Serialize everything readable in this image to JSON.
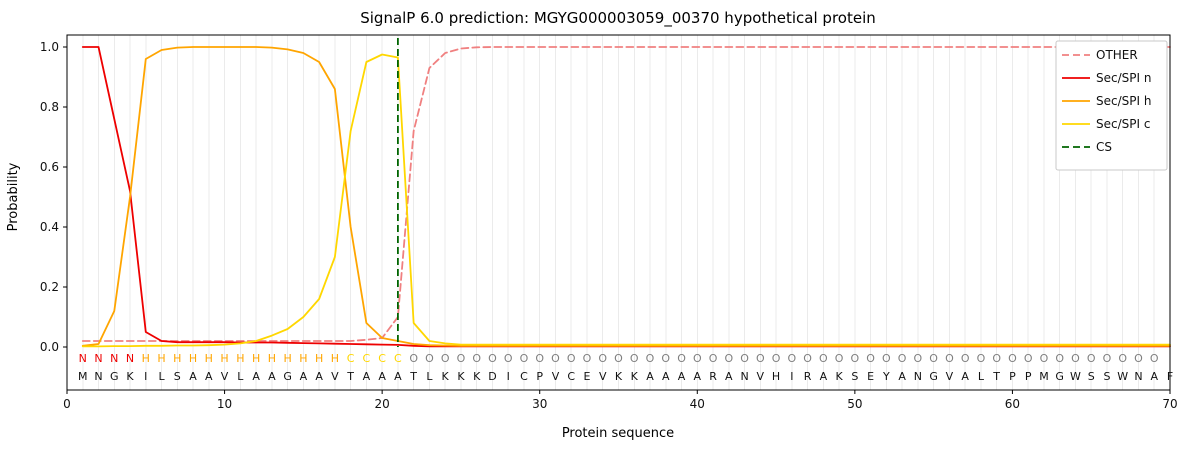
{
  "chart_data": {
    "type": "line",
    "title": "SignalP 6.0 prediction: MGYG000003059_00370 hypothetical protein",
    "xlabel": "Protein sequence",
    "ylabel": "Probability",
    "xlim": [
      0,
      70
    ],
    "ylim": [
      0,
      1.0
    ],
    "grid": "vertical-per-residue",
    "legend_position": "upper right",
    "xtick_values": [
      0,
      10,
      20,
      30,
      40,
      50,
      60,
      70
    ],
    "xtick_labels": [
      "0",
      "10",
      "20",
      "30",
      "40",
      "50",
      "60",
      "70"
    ],
    "ytick_values": [
      0,
      0.2,
      0.4,
      0.6,
      0.8,
      1.0
    ],
    "ytick_labels": [
      "0.0",
      "0.2",
      "0.4",
      "0.6",
      "0.8",
      "1.0"
    ],
    "series": [
      {
        "name": "OTHER",
        "color": "#f08080",
        "dash": true,
        "values": [
          0.02,
          0.02,
          0.02,
          0.02,
          0.02,
          0.02,
          0.02,
          0.02,
          0.02,
          0.02,
          0.02,
          0.02,
          0.02,
          0.02,
          0.02,
          0.02,
          0.02,
          0.02,
          0.024,
          0.03,
          0.1,
          0.72,
          0.93,
          0.98,
          0.995,
          0.999,
          1.0,
          1.0,
          1.0,
          1.0,
          1.0,
          1.0,
          1.0,
          1.0,
          1.0,
          1.0,
          1.0,
          1.0,
          1.0,
          1.0,
          1.0,
          1.0,
          1.0,
          1.0,
          1.0,
          1.0,
          1.0,
          1.0,
          1.0,
          1.0,
          1.0,
          1.0,
          1.0,
          1.0,
          1.0,
          1.0,
          1.0,
          1.0,
          1.0,
          1.0,
          1.0,
          1.0,
          1.0,
          1.0,
          1.0,
          1.0,
          1.0,
          1.0,
          1.0,
          1.0
        ]
      },
      {
        "name": "Sec/SPI n",
        "color": "#ee0000",
        "dash": false,
        "values": [
          1.0,
          1.0,
          0.76,
          0.52,
          0.05,
          0.02,
          0.016,
          0.016,
          0.016,
          0.016,
          0.015,
          0.015,
          0.015,
          0.014,
          0.013,
          0.012,
          0.011,
          0.01,
          0.009,
          0.008,
          0.007,
          0.004,
          0.002,
          0.002,
          0.002,
          0.002,
          0.002,
          0.002,
          0.002,
          0.002,
          0.002,
          0.002,
          0.002,
          0.002,
          0.002,
          0.002,
          0.002,
          0.002,
          0.002,
          0.002,
          0.002,
          0.002,
          0.002,
          0.002,
          0.002,
          0.002,
          0.002,
          0.002,
          0.002,
          0.002,
          0.002,
          0.002,
          0.002,
          0.002,
          0.002,
          0.002,
          0.002,
          0.002,
          0.002,
          0.002,
          0.002,
          0.002,
          0.002,
          0.002,
          0.002,
          0.002,
          0.002,
          0.002,
          0.002,
          0.002
        ]
      },
      {
        "name": "Sec/SPI h",
        "color": "#ffa500",
        "dash": false,
        "values": [
          0.004,
          0.01,
          0.12,
          0.5,
          0.96,
          0.99,
          0.998,
          1.0,
          1.0,
          1.0,
          1.0,
          1.0,
          0.998,
          0.992,
          0.98,
          0.95,
          0.86,
          0.4,
          0.08,
          0.03,
          0.02,
          0.01,
          0.006,
          0.005,
          0.004,
          0.004,
          0.004,
          0.004,
          0.004,
          0.004,
          0.004,
          0.004,
          0.004,
          0.004,
          0.004,
          0.004,
          0.004,
          0.004,
          0.004,
          0.004,
          0.004,
          0.004,
          0.004,
          0.004,
          0.004,
          0.004,
          0.004,
          0.004,
          0.004,
          0.004,
          0.004,
          0.004,
          0.004,
          0.004,
          0.004,
          0.004,
          0.004,
          0.004,
          0.004,
          0.004,
          0.004,
          0.004,
          0.004,
          0.004,
          0.004,
          0.004,
          0.004,
          0.004,
          0.004,
          0.004
        ]
      },
      {
        "name": "Sec/SPI c",
        "color": "#ffd700",
        "dash": false,
        "values": [
          0.002,
          0.002,
          0.003,
          0.003,
          0.004,
          0.004,
          0.005,
          0.005,
          0.006,
          0.008,
          0.012,
          0.02,
          0.038,
          0.06,
          0.1,
          0.16,
          0.3,
          0.72,
          0.95,
          0.975,
          0.965,
          0.08,
          0.02,
          0.012,
          0.008,
          0.008,
          0.008,
          0.008,
          0.008,
          0.008,
          0.008,
          0.008,
          0.008,
          0.008,
          0.008,
          0.008,
          0.008,
          0.008,
          0.008,
          0.008,
          0.008,
          0.008,
          0.008,
          0.008,
          0.008,
          0.008,
          0.008,
          0.008,
          0.008,
          0.008,
          0.008,
          0.008,
          0.008,
          0.008,
          0.008,
          0.008,
          0.008,
          0.008,
          0.008,
          0.008,
          0.008,
          0.008,
          0.008,
          0.008,
          0.008,
          0.008,
          0.008,
          0.008,
          0.008,
          0.008
        ]
      }
    ],
    "cs": {
      "name": "CS",
      "color": "#006400",
      "dash": true,
      "position": 21
    },
    "sequence": "MNGKILSAAVLAAGAAVTAAATLKKKDICPVCEVKKAAAARANVHIRAKSEYANGVALTPPMGWSSWNAF",
    "region_labels": "NNNNHHHHHHHHHHHHHCCCCOOOOOOOOOOOOOOOOOOOOOOOOOOOOOOOOOOOOOOOOOOOOOOOO",
    "region_colors": {
      "N": "#ee0000",
      "H": "#ffa500",
      "C": "#ffd700",
      "O": "#7f7f7f"
    },
    "style": {
      "grid_color": "#ebebeb",
      "axis_color": "#000000",
      "tick_label_color": "#111111",
      "sequence_letter_color": "#111111",
      "legend_border_color": "#c9c9c9",
      "legend_bg_color": "#ffffff"
    }
  }
}
